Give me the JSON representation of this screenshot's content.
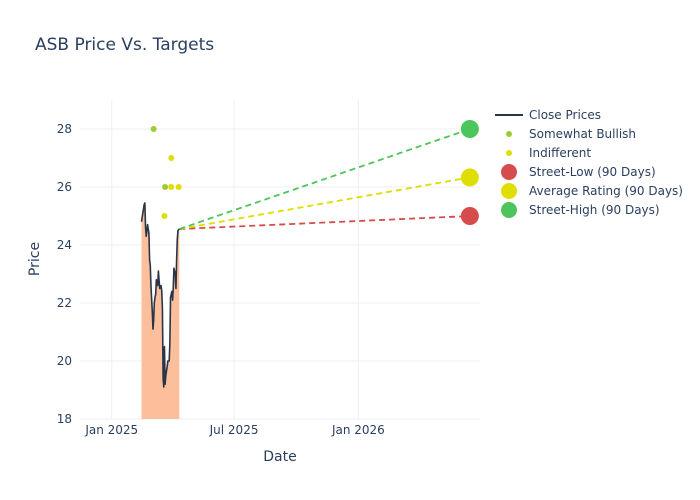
{
  "chart_data": {
    "type": "line",
    "title": "ASB Price Vs. Targets",
    "xlabel": "Date",
    "ylabel": "Price",
    "xlim": [
      "2024-11-15",
      "2026-06-30"
    ],
    "ylim": [
      18,
      29
    ],
    "x_ticks": [
      {
        "date": "2025-01-01",
        "label": "Jan 2025"
      },
      {
        "date": "2025-07-01",
        "label": "Jul 2025"
      },
      {
        "date": "2026-01-01",
        "label": "Jan 2026"
      }
    ],
    "y_ticks": [
      18,
      20,
      22,
      24,
      26,
      28
    ],
    "grid": true,
    "legend_position": "right",
    "colors": {
      "close": "#2a3547",
      "fill": "#fdbf9b",
      "somewhat_bullish": "#9acd32",
      "indifferent": "#dede00",
      "street_low": "#d64c4c",
      "average": "#dede00",
      "street_high": "#4cc55b"
    },
    "legend": [
      {
        "key": "close",
        "label": "Close Prices",
        "symbol": "line"
      },
      {
        "key": "somewhat_bullish",
        "label": "Somewhat Bullish",
        "symbol": "small-dot"
      },
      {
        "key": "indifferent",
        "label": "Indifferent",
        "symbol": "small-dot"
      },
      {
        "key": "street_low",
        "label": "Street-Low (90 Days)",
        "symbol": "big-dot"
      },
      {
        "key": "average",
        "label": "Average Rating (90 Days)",
        "symbol": "big-dot"
      },
      {
        "key": "street_high",
        "label": "Street-High (90 Days)",
        "symbol": "big-dot"
      }
    ],
    "close_prices": [
      [
        "2025-02-14",
        24.8
      ],
      [
        "2025-02-16",
        25.1
      ],
      [
        "2025-02-18",
        25.4
      ],
      [
        "2025-02-19",
        25.45
      ],
      [
        "2025-02-20",
        24.6
      ],
      [
        "2025-02-21",
        24.3
      ],
      [
        "2025-02-23",
        24.7
      ],
      [
        "2025-02-25",
        24.4
      ],
      [
        "2025-02-26",
        23.5
      ],
      [
        "2025-02-27",
        23.3
      ],
      [
        "2025-02-28",
        22.6
      ],
      [
        "2025-03-02",
        21.7
      ],
      [
        "2025-03-03",
        21.1
      ],
      [
        "2025-03-04",
        21.4
      ],
      [
        "2025-03-05",
        22.0
      ],
      [
        "2025-03-06",
        22.2
      ],
      [
        "2025-03-07",
        22.3
      ],
      [
        "2025-03-08",
        22.8
      ],
      [
        "2025-03-10",
        22.6
      ],
      [
        "2025-03-11",
        23.1
      ],
      [
        "2025-03-12",
        22.8
      ],
      [
        "2025-03-13",
        22.5
      ],
      [
        "2025-03-15",
        22.6
      ],
      [
        "2025-03-16",
        22.4
      ],
      [
        "2025-03-17",
        21.8
      ],
      [
        "2025-03-18",
        19.4
      ],
      [
        "2025-03-19",
        19.1
      ],
      [
        "2025-03-20",
        20.5
      ],
      [
        "2025-03-21",
        19.2
      ],
      [
        "2025-03-22",
        19.5
      ],
      [
        "2025-03-24",
        19.8
      ],
      [
        "2025-03-25",
        20.0
      ],
      [
        "2025-03-27",
        20.0
      ],
      [
        "2025-03-28",
        20.6
      ],
      [
        "2025-03-29",
        22.2
      ],
      [
        "2025-03-31",
        22.4
      ],
      [
        "2025-04-01",
        22.1
      ],
      [
        "2025-04-02",
        22.5
      ],
      [
        "2025-04-03",
        23.2
      ],
      [
        "2025-04-05",
        23.0
      ],
      [
        "2025-04-06",
        22.5
      ],
      [
        "2025-04-07",
        23.5
      ],
      [
        "2025-04-08",
        24.2
      ],
      [
        "2025-04-09",
        24.5
      ],
      [
        "2025-04-11",
        24.55
      ]
    ],
    "ratings": {
      "somewhat_bullish": [
        [
          "2025-03-04",
          28
        ],
        [
          "2025-03-21",
          26
        ]
      ],
      "indifferent": [
        [
          "2025-03-20",
          25
        ],
        [
          "2025-03-30",
          27
        ],
        [
          "2025-03-30",
          26
        ],
        [
          "2025-04-10",
          26
        ]
      ]
    },
    "targets": {
      "start": [
        "2025-04-11",
        24.55
      ],
      "date": "2026-06-15",
      "street_low": 25.0,
      "average": 26.33,
      "street_high": 28.0
    }
  }
}
